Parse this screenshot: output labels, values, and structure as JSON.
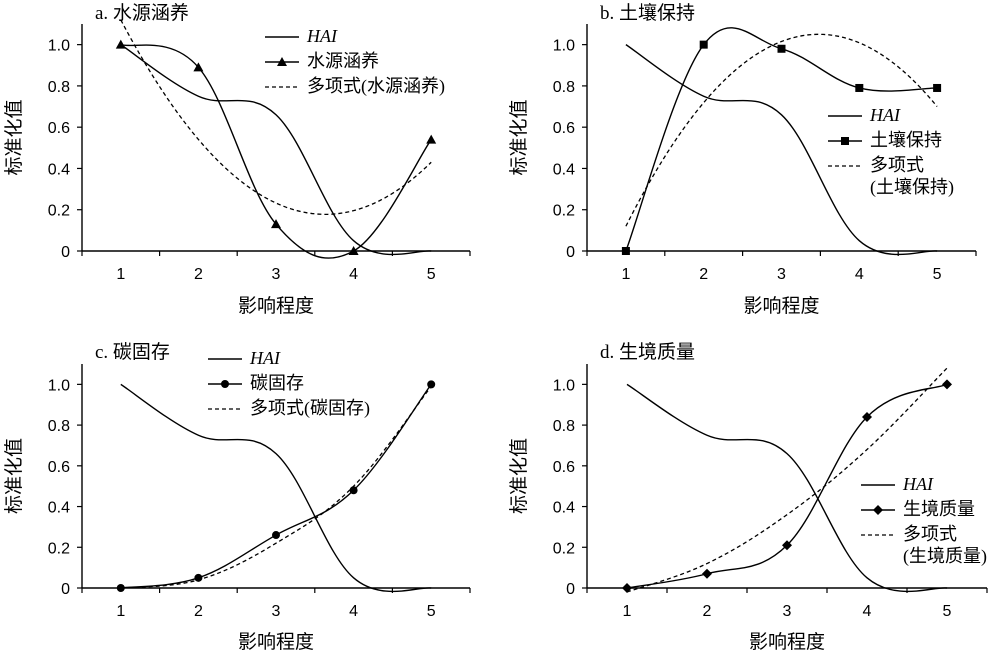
{
  "chart_data": [
    {
      "type": "line",
      "title": "a. 水源涵养",
      "xlabel": "影响程度",
      "ylabel": "标准化值",
      "x_ticks": [
        "1",
        "2",
        "3",
        "4",
        "5"
      ],
      "y_ticks": [
        "0",
        "0.2",
        "0.4",
        "0.6",
        "0.8",
        "1.0"
      ],
      "xlim": [
        0.5,
        5.5
      ],
      "ylim": [
        0,
        1.1
      ],
      "legend_position": "top-right",
      "marker": "triangle",
      "series": [
        {
          "name": "HAI",
          "style": "solid",
          "smooth": true,
          "x": [
            1,
            2,
            3,
            4,
            5
          ],
          "values": [
            1.0,
            0.75,
            0.66,
            0.05,
            0.0
          ]
        },
        {
          "name": "水源涵养",
          "style": "solid-markers",
          "smooth": true,
          "x": [
            1,
            2,
            3,
            4,
            5
          ],
          "values": [
            1.0,
            0.89,
            0.13,
            0.0,
            0.54
          ]
        },
        {
          "name": "多项式(水源涵养)",
          "style": "dashed",
          "poly": [
            0.2,
            2.7
          ],
          "x": [
            1,
            5
          ],
          "values": [
            1.12,
            0.43
          ]
        }
      ]
    },
    {
      "type": "line",
      "title": "b. 土壤保持",
      "xlabel": "影响程度",
      "ylabel": "标准化值",
      "x_ticks": [
        "1",
        "2",
        "3",
        "4",
        "5"
      ],
      "y_ticks": [
        "0",
        "0.2",
        "0.4",
        "0.6",
        "0.8",
        "1.0"
      ],
      "xlim": [
        0.5,
        5.5
      ],
      "ylim": [
        0,
        1.1
      ],
      "legend_position": "middle-right",
      "marker": "square",
      "series": [
        {
          "name": "HAI",
          "style": "solid",
          "smooth": true,
          "x": [
            1,
            2,
            3,
            4,
            5
          ],
          "values": [
            1.0,
            0.75,
            0.66,
            0.05,
            0.0
          ]
        },
        {
          "name": "土壤保持",
          "style": "solid-markers",
          "smooth": true,
          "x": [
            1,
            2,
            3,
            4,
            5
          ],
          "values": [
            0.0,
            1.0,
            0.98,
            0.79,
            0.79
          ]
        },
        {
          "name": "多项式\n(土壤保持)",
          "style": "dashed",
          "poly": [
            3.45,
            1.05,
            0.075
          ],
          "x": [
            1,
            5
          ],
          "values": [
            0.12,
            0.7
          ]
        }
      ]
    },
    {
      "type": "line",
      "title": "c. 碳固存",
      "xlabel": "影响程度",
      "ylabel": "标准化值",
      "x_ticks": [
        "1",
        "2",
        "3",
        "4",
        "5"
      ],
      "y_ticks": [
        "0",
        "0.2",
        "0.4",
        "0.6",
        "0.8",
        "1.0"
      ],
      "xlim": [
        0.5,
        5.5
      ],
      "ylim": [
        0,
        1.1
      ],
      "legend_position": "top-center",
      "marker": "circle",
      "series": [
        {
          "name": "HAI",
          "style": "solid",
          "smooth": true,
          "x": [
            1,
            2,
            3,
            4,
            5
          ],
          "values": [
            1.0,
            0.75,
            0.66,
            0.05,
            0.0
          ]
        },
        {
          "name": "碳固存",
          "style": "solid-markers",
          "smooth": true,
          "x": [
            1,
            2,
            3,
            4,
            5
          ],
          "values": [
            0.0,
            0.05,
            0.26,
            0.48,
            1.0
          ]
        },
        {
          "name": "多项式(碳固存)",
          "style": "dashed",
          "poly_cubic": true,
          "x": [
            1,
            2,
            3,
            4,
            5
          ],
          "values": [
            0.0,
            0.04,
            0.22,
            0.5,
            0.99
          ]
        }
      ]
    },
    {
      "type": "line",
      "title": "d. 生境质量",
      "xlabel": "影响程度",
      "ylabel": "标准化值",
      "x_ticks": [
        "1",
        "2",
        "3",
        "4",
        "5"
      ],
      "y_ticks": [
        "0",
        "0.2",
        "0.4",
        "0.6",
        "0.8",
        "1.0"
      ],
      "xlim": [
        0.5,
        5.5
      ],
      "ylim": [
        0,
        1.1
      ],
      "legend_position": "middle-right",
      "marker": "diamond",
      "series": [
        {
          "name": "HAI",
          "style": "solid",
          "smooth": true,
          "x": [
            1,
            2,
            3,
            4,
            5
          ],
          "values": [
            1.0,
            0.75,
            0.66,
            0.05,
            0.0
          ]
        },
        {
          "name": "生境质量",
          "style": "solid-markers",
          "smooth": true,
          "x": [
            1,
            2,
            3,
            4,
            5
          ],
          "values": [
            0.0,
            0.07,
            0.21,
            0.84,
            1.0
          ]
        },
        {
          "name": "多项式\n(生境质量)",
          "style": "dashed",
          "poly_cubic": true,
          "x": [
            1,
            2,
            3,
            4,
            5
          ],
          "values": [
            -0.07,
            0.12,
            0.36,
            0.68,
            1.08
          ]
        }
      ]
    }
  ]
}
